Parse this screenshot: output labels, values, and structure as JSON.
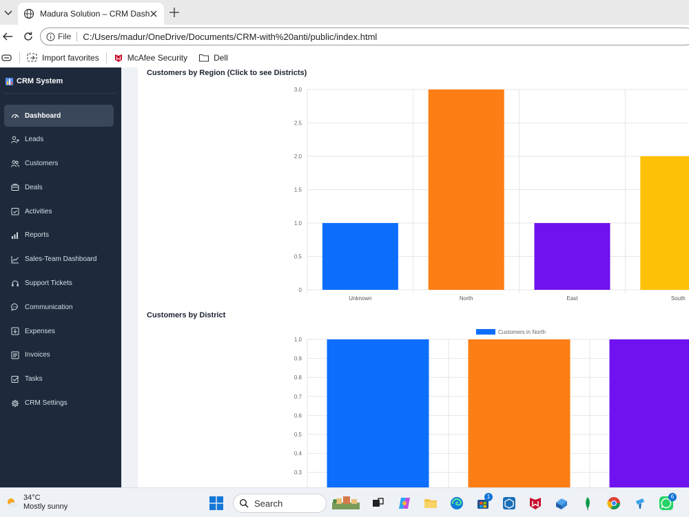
{
  "browser": {
    "tab_title": "Madura Solution – CRM Dashboard",
    "address": {
      "scheme_label": "File",
      "url": "C:/Users/madur/OneDrive/Documents/CRM-with%20anti/public/index.html"
    },
    "favorites": [
      {
        "label": "Import favorites",
        "icon": "import-icon"
      },
      {
        "label": "McAfee Security",
        "icon": "mcafee-icon"
      },
      {
        "label": "Dell",
        "icon": "folder-icon"
      }
    ]
  },
  "sidebar": {
    "brand": "CRM System",
    "items": [
      {
        "label": "Dashboard",
        "icon": "dashboard-icon",
        "active": true
      },
      {
        "label": "Leads",
        "icon": "user-plus-icon"
      },
      {
        "label": "Customers",
        "icon": "users-icon"
      },
      {
        "label": "Deals",
        "icon": "deals-icon"
      },
      {
        "label": "Activities",
        "icon": "calendar-check-icon"
      },
      {
        "label": "Reports",
        "icon": "bar-chart-icon"
      },
      {
        "label": "Sales-Team Dashboard",
        "icon": "line-chart-icon"
      },
      {
        "label": "Support Tickets",
        "icon": "headset-icon"
      },
      {
        "label": "Communication",
        "icon": "chat-icon"
      },
      {
        "label": "Expenses",
        "icon": "expense-icon"
      },
      {
        "label": "Invoices",
        "icon": "invoice-icon"
      },
      {
        "label": "Tasks",
        "icon": "checkbox-icon"
      },
      {
        "label": "CRM Settings",
        "icon": "gear-icon"
      }
    ]
  },
  "main": {
    "region_title": "Customers by Region (Click to see Districts)",
    "district_title": "Customers by District"
  },
  "chart_data": [
    {
      "type": "bar",
      "title": "Customers by Region (Click to see Districts)",
      "categories": [
        "Unknown",
        "North",
        "East",
        "South"
      ],
      "values": [
        1,
        3,
        1,
        2
      ],
      "colors": [
        "#0d6efd",
        "#fd7e14",
        "#6f12ef",
        "#ffc107"
      ],
      "yticks": [
        "0",
        "0.5",
        "1.0",
        "1.5",
        "2.0",
        "2.5",
        "3.0"
      ],
      "ylim": [
        0,
        3
      ],
      "grid": true,
      "legend": "none"
    },
    {
      "type": "bar",
      "title": "Customers by District",
      "series": [
        {
          "name": "Customers in North",
          "values": [
            1,
            1,
            1
          ]
        }
      ],
      "values": [
        1,
        1,
        1
      ],
      "colors": [
        "#0d6efd",
        "#fd7e14",
        "#6f12ef"
      ],
      "yticks": [
        "0.3",
        "0.4",
        "0.5",
        "0.6",
        "0.7",
        "0.8",
        "0.9",
        "1.0"
      ],
      "ylim": [
        0,
        1
      ],
      "grid": true,
      "legend": "top"
    }
  ],
  "taskbar": {
    "weather": {
      "temp": "34°C",
      "condition": "Mostly sunny"
    },
    "search_placeholder": "Search",
    "badges": {
      "store": "1",
      "whatsapp": "6"
    }
  }
}
